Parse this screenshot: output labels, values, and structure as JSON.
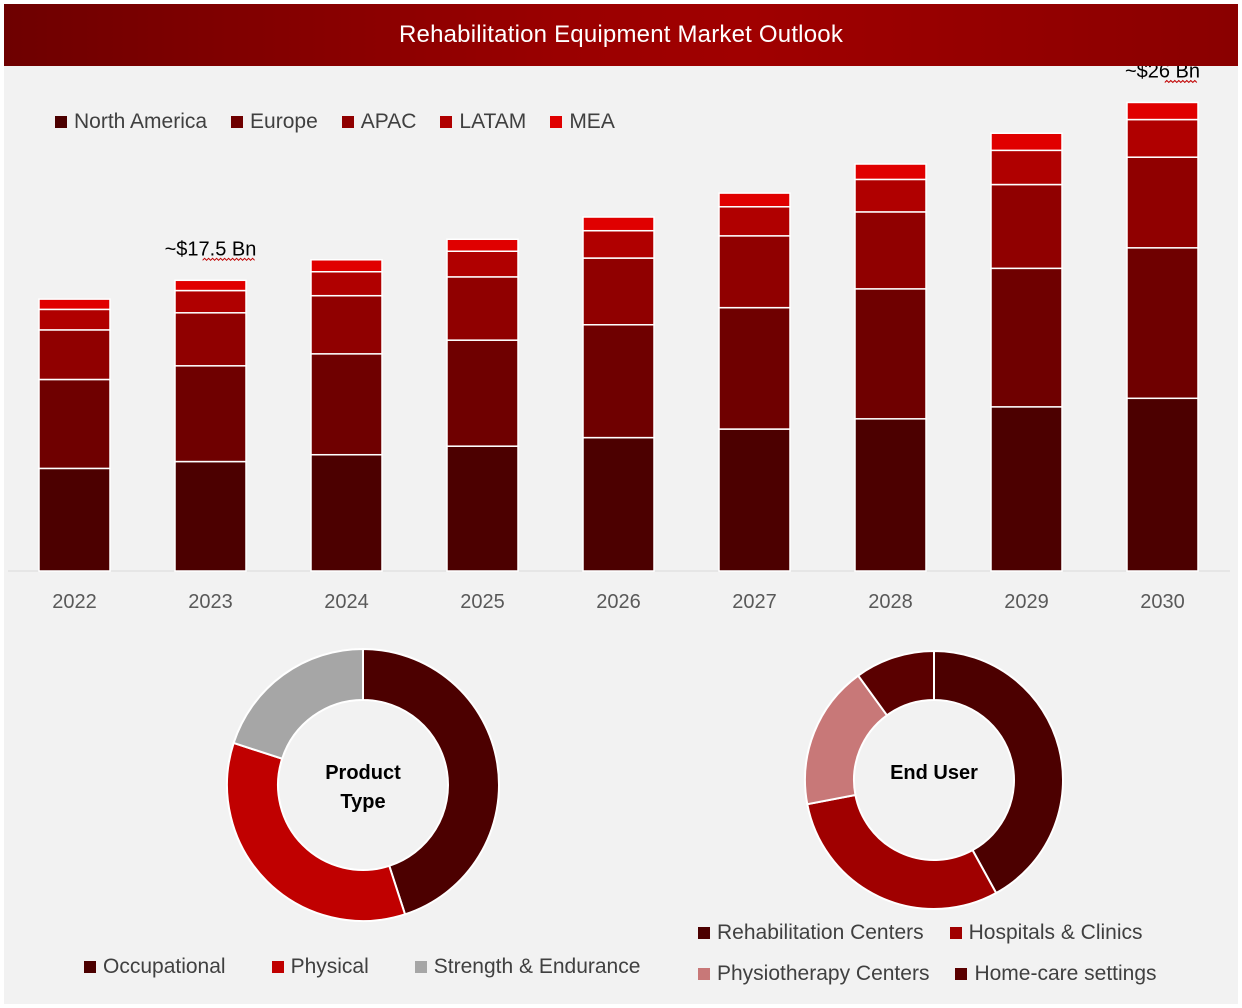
{
  "header": {
    "title": "Rehabilitation Equipment Market Outlook"
  },
  "chart_data": [
    {
      "type": "bar",
      "stacked": true,
      "title": "Rehabilitation Equipment Market Outlook",
      "categories": [
        "2022",
        "2023",
        "2024",
        "2025",
        "2026",
        "2027",
        "2028",
        "2029",
        "2030"
      ],
      "series": [
        {
          "name": "North America",
          "color": "#4c0000",
          "values": [
            6.0,
            6.4,
            6.8,
            7.3,
            7.8,
            8.3,
            8.9,
            9.6,
            10.1
          ]
        },
        {
          "name": "Europe",
          "color": "#6f0000",
          "values": [
            5.2,
            5.6,
            5.9,
            6.2,
            6.6,
            7.1,
            7.6,
            8.1,
            8.8
          ]
        },
        {
          "name": "APAC",
          "color": "#900000",
          "values": [
            2.9,
            3.1,
            3.4,
            3.7,
            3.9,
            4.2,
            4.5,
            4.9,
            5.3
          ]
        },
        {
          "name": "LATAM",
          "color": "#b00000",
          "values": [
            1.2,
            1.3,
            1.4,
            1.5,
            1.6,
            1.7,
            1.9,
            2.0,
            2.2
          ]
        },
        {
          "name": "MEA",
          "color": "#e00000",
          "values": [
            0.6,
            0.6,
            0.7,
            0.7,
            0.8,
            0.8,
            0.9,
            1.0,
            1.0
          ]
        }
      ],
      "annotations": [
        {
          "category": "2023",
          "text": "~$17.5 Bn"
        },
        {
          "category": "2030",
          "text": "~$26 Bn"
        }
      ],
      "legend": "top-left",
      "grid": false
    },
    {
      "type": "pie",
      "donut": true,
      "center_label_lines": [
        "Product",
        "Type"
      ],
      "labels": [
        "Occupational",
        "Physical",
        "Strength & Endurance"
      ],
      "values": [
        45,
        35,
        20
      ],
      "colors": [
        "#4c0000",
        "#c00000",
        "#a6a6a6"
      ],
      "legend": "bottom"
    },
    {
      "type": "pie",
      "donut": true,
      "center_label_lines": [
        "End User"
      ],
      "labels": [
        "Rehabilitation Centers",
        "Hospitals & Clinics",
        "Physiotherapy Centers",
        "Home-care settings"
      ],
      "values": [
        42,
        30,
        18,
        10
      ],
      "colors": [
        "#4c0000",
        "#a00000",
        "#c87878",
        "#5a0000"
      ],
      "legend": "bottom"
    }
  ]
}
